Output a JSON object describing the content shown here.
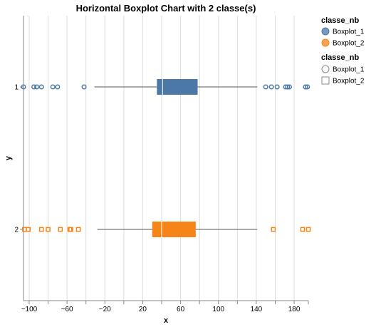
{
  "chart_data": {
    "type": "boxplot",
    "orientation": "horizontal",
    "title": "Horizontal Boxplot Chart with 2 classe(s)",
    "xlabel": "x",
    "ylabel": "y",
    "xlim": [
      -106,
      195
    ],
    "x_ticks": [
      -100,
      -60,
      -20,
      20,
      60,
      100,
      140,
      180
    ],
    "categories": [
      "1",
      "2"
    ],
    "grid": true,
    "legend_placement": "right",
    "series": [
      {
        "name": "Boxplot_1",
        "category": "1",
        "color": "#4c78a8",
        "whisker_low": -31,
        "q1": 35,
        "median": 41,
        "q3": 78,
        "whisker_high": 141,
        "outliers": [
          -106,
          -95,
          -92,
          -87,
          -75,
          -70,
          -42,
          150,
          156,
          162,
          171,
          173,
          175,
          192,
          194
        ]
      },
      {
        "name": "Boxplot_2",
        "category": "2",
        "color": "#f58518",
        "whisker_low": -28,
        "q1": 30,
        "median": 40,
        "q3": 76,
        "whisker_high": 141,
        "outliers": [
          -105,
          -101,
          -87,
          -80,
          -67,
          -57,
          -56,
          -48,
          158,
          189,
          196
        ]
      }
    ]
  },
  "legend": {
    "color_title": "classe_nb",
    "shape_title": "classe_nb",
    "color_items": [
      "Boxplot_1",
      "Boxplot_2"
    ],
    "shape_items": [
      "Boxplot_1",
      "Boxplot_2"
    ],
    "shape_icons": [
      "circle-icon",
      "square-icon"
    ]
  }
}
